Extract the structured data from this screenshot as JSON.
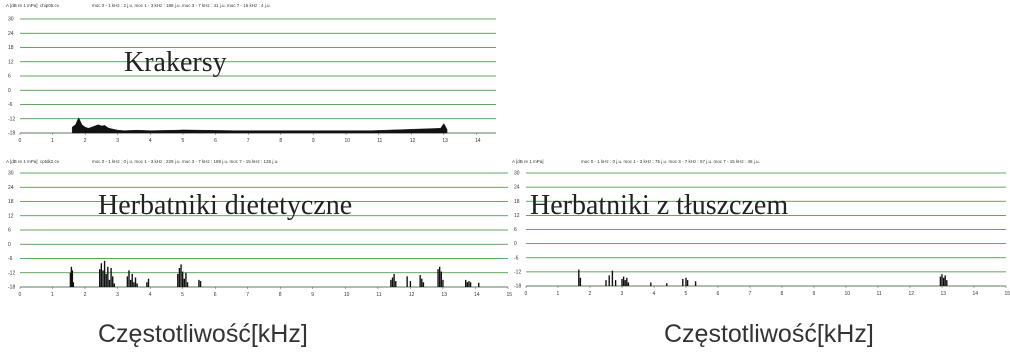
{
  "charts": [
    {
      "id": "krakersy",
      "header_axis": "A [dB re 1 mPa]",
      "header_file": "chip05.cv",
      "header_stats": "moc 0 - 1 kHz : 2 j.u. moc 1 - 3 kHz : 188 j.u. moc 3 - 7 kHz : 41 j.u. moc 7 - 15 kHz : 4 j.u.",
      "title": "Krakersy",
      "yticks": [
        "30",
        "24",
        "18",
        "12",
        "6",
        "0",
        "-6",
        "-12",
        "-18"
      ],
      "xticks": [
        "0",
        "1",
        "2",
        "3",
        "4",
        "5",
        "6",
        "7",
        "8",
        "9",
        "10",
        "11",
        "12",
        "13",
        "14"
      ]
    },
    {
      "id": "herbatniki-dietetyczne",
      "header_axis": "A [dB re 1 mPa]",
      "header_file": "cptdk2.cv",
      "header_stats": "moc 0 - 1 kHz : 0 j.u. moc 1 - 3 kHz : 229 j.u. moc 3 - 7 kHz : 189 j.u. moc 7 - 15 kHz : 136 j.u.",
      "title": "Herbatniki dietetyczne",
      "yticks": [
        "30",
        "24",
        "18",
        "12",
        "6",
        "0",
        "-6",
        "-12",
        "-18"
      ],
      "xticks": [
        "0",
        "1",
        "2",
        "3",
        "4",
        "5",
        "6",
        "7",
        "8",
        "9",
        "10",
        "11",
        "12",
        "13",
        "14",
        "15"
      ],
      "xlabel": "Częstotliwość[kHz]"
    },
    {
      "id": "herbatniki-z-tluszczem",
      "header_axis": "A [dB re 1 mPa]",
      "header_file": "",
      "header_stats": "moc 0 - 1 kHz : 0 j.u. moc 1 - 3 kHz : 75 j.u. moc 3 - 7 kHz : 67 j.u. moc 7 - 15 kHz : 46 j.u.",
      "title": "Herbatniki z tłuszczem",
      "yticks": [
        "30",
        "24",
        "18",
        "12",
        "6",
        "0",
        "-6",
        "-12",
        "-18"
      ],
      "xticks": [
        "0",
        "1",
        "2",
        "3",
        "4",
        "5",
        "6",
        "7",
        "8",
        "9",
        "10",
        "11",
        "12",
        "13",
        "14",
        "15"
      ],
      "xlabel": "Częstotliwość[kHz]"
    }
  ],
  "chart_data": [
    {
      "type": "area",
      "title": "Krakersy",
      "ylabel": "A [dB re 1 mPa]",
      "xlim": [
        0,
        14.6
      ],
      "ylim": [
        -18,
        30
      ],
      "grid": true,
      "colors": {
        "grid": "#2e8b2e",
        "fill": "#111111"
      },
      "series": [
        {
          "x": [
            1.6,
            1.7,
            1.8,
            1.9,
            2.0,
            2.1,
            2.2,
            2.3,
            2.4,
            2.5,
            2.6,
            2.7,
            2.8,
            3.0,
            3.2,
            3.6,
            4.0,
            4.8,
            5.0,
            6.6,
            10.8,
            12.9,
            13.0,
            13.1
          ],
          "y": [
            -15.5,
            -14.5,
            -11.5,
            -14.5,
            -15.5,
            -16.0,
            -15.5,
            -15.0,
            -14.5,
            -15.0,
            -14.8,
            -15.8,
            -16.2,
            -16.8,
            -17.0,
            -16.8,
            -17.0,
            -16.8,
            -16.7,
            -17.0,
            -17.0,
            -16.0,
            -14.0,
            -16.5
          ]
        }
      ]
    },
    {
      "type": "bar",
      "title": "Herbatniki dietetyczne",
      "ylabel": "A [dB re 1 mPa]",
      "xlim": [
        0,
        15
      ],
      "ylim": [
        -18,
        30
      ],
      "grid": true,
      "colors": {
        "grid": "#2e8b2e",
        "fill": "#111111"
      },
      "series": [
        {
          "x": [
            1.55,
            1.58,
            1.61,
            1.64,
            2.45,
            2.5,
            2.55,
            2.6,
            2.65,
            2.7,
            2.75,
            2.8,
            2.85,
            2.9,
            3.3,
            3.35,
            3.4,
            3.45,
            3.5,
            3.55,
            3.6,
            3.9,
            3.95,
            4.85,
            4.9,
            4.95,
            5.0,
            5.05,
            5.1,
            5.15,
            5.5,
            5.55,
            11.4,
            11.45,
            11.5,
            11.55,
            11.9,
            12.0,
            12.3,
            12.35,
            12.4,
            12.85,
            12.9,
            12.95,
            13.0,
            13.7,
            13.75,
            13.8,
            13.85,
            14.1
          ],
          "y": [
            -12.0,
            -9.5,
            -11.0,
            -16.0,
            -10.5,
            -8.0,
            -11.0,
            -7.0,
            -12.5,
            -9.5,
            -15.0,
            -10.0,
            -13.5,
            -16.5,
            -13.5,
            -11.0,
            -15.0,
            -12.5,
            -16.0,
            -14.0,
            -16.5,
            -16.0,
            -14.5,
            -12.5,
            -10.0,
            -8.5,
            -11.5,
            -14.5,
            -12.0,
            -16.0,
            -15.0,
            -15.5,
            -15.0,
            -14.0,
            -12.5,
            -15.5,
            -13.5,
            -15.5,
            -13.0,
            -14.5,
            -16.0,
            -10.5,
            -9.5,
            -11.5,
            -15.0,
            -15.0,
            -16.0,
            -15.5,
            -16.0,
            -16.2
          ]
        }
      ]
    },
    {
      "type": "bar",
      "title": "Herbatniki z tłuszczem",
      "ylabel": "A [dB re 1 mPa]",
      "xlim": [
        0,
        15
      ],
      "ylim": [
        -18,
        30
      ],
      "grid": true,
      "colors": {
        "grid": "#2e8b2e",
        "fill": "#111111"
      },
      "series": [
        {
          "x": [
            1.65,
            1.7,
            2.5,
            2.6,
            2.7,
            2.8,
            3.0,
            3.05,
            3.1,
            3.15,
            3.2,
            3.9,
            4.4,
            4.9,
            5.0,
            5.05,
            5.3,
            12.95,
            13.0,
            13.05,
            13.1,
            13.15
          ],
          "y": [
            -11.0,
            -14.5,
            -15.5,
            -13.5,
            -11.5,
            -15.5,
            -15.0,
            -14.0,
            -15.5,
            -14.5,
            -16.5,
            -16.5,
            -16.8,
            -15.0,
            -14.5,
            -15.5,
            -16.0,
            -14.0,
            -13.0,
            -14.5,
            -13.5,
            -15.5
          ]
        }
      ]
    }
  ]
}
